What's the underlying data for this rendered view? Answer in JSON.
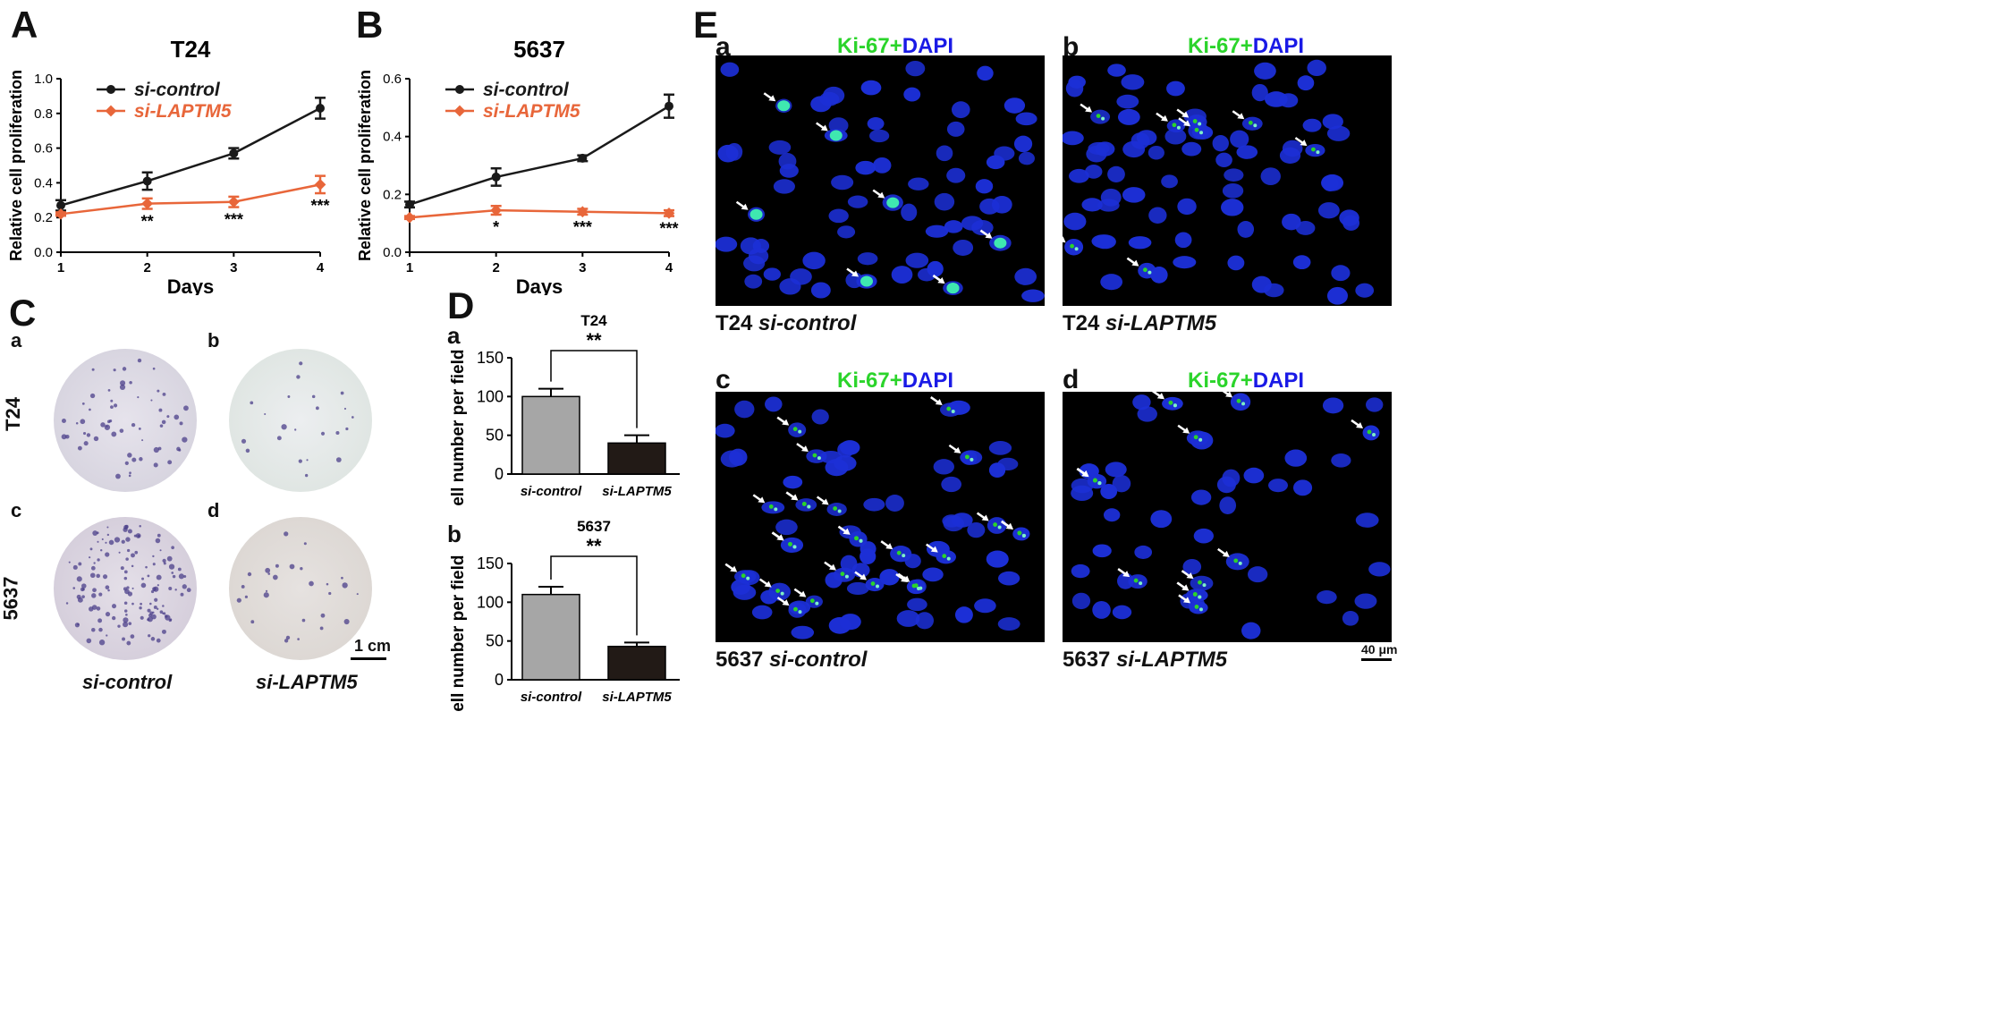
{
  "panels": {
    "A": "A",
    "B": "B",
    "C": "C",
    "D": "D",
    "E": "E"
  },
  "chart_data": [
    {
      "id": "A",
      "type": "line",
      "title": "T24",
      "xlabel": "Days",
      "ylabel": "Relative cell proliferation",
      "x": [
        1,
        2,
        3,
        4
      ],
      "ylim": [
        0.0,
        1.0
      ],
      "yticks": [
        "0.0",
        "0.2",
        "0.4",
        "0.6",
        "0.8",
        "1.0"
      ],
      "xticks": [
        "1",
        "2",
        "3",
        "4"
      ],
      "legend_position": "top-left",
      "series": [
        {
          "name": "si-control",
          "color": "#1a1a1a",
          "values": [
            0.27,
            0.41,
            0.57,
            0.83
          ],
          "errors": [
            0.03,
            0.05,
            0.03,
            0.06
          ]
        },
        {
          "name": "si-LAPTM5",
          "color": "#e8663a",
          "values": [
            0.22,
            0.28,
            0.29,
            0.39
          ],
          "errors": [
            0.01,
            0.03,
            0.03,
            0.05
          ]
        }
      ],
      "annotations": [
        "",
        "**",
        "***",
        "***"
      ]
    },
    {
      "id": "B",
      "type": "line",
      "title": "5637",
      "xlabel": "Days",
      "ylabel": "Relative cell proliferation",
      "x": [
        1,
        2,
        3,
        4
      ],
      "ylim": [
        0.0,
        0.6
      ],
      "yticks": [
        "0.0",
        "0.2",
        "0.4",
        "0.6"
      ],
      "xticks": [
        "1",
        "2",
        "3",
        "4"
      ],
      "legend_position": "top-left",
      "series": [
        {
          "name": "si-control",
          "color": "#1a1a1a",
          "values": [
            0.165,
            0.26,
            0.325,
            0.505
          ],
          "errors": [
            0.01,
            0.03,
            0.01,
            0.04
          ]
        },
        {
          "name": "si-LAPTM5",
          "color": "#e8663a",
          "values": [
            0.12,
            0.145,
            0.14,
            0.135
          ],
          "errors": [
            0.005,
            0.015,
            0.01,
            0.01
          ]
        }
      ],
      "annotations": [
        "",
        "*",
        "***",
        "***"
      ]
    },
    {
      "id": "D-a",
      "type": "bar",
      "title": "T24",
      "significance": "**",
      "ylabel": "Cell number per field",
      "categories": [
        "si-control",
        "si-LAPTM5"
      ],
      "values": [
        100,
        40
      ],
      "errors": [
        10,
        10
      ],
      "colors": [
        "#a6a6a6",
        "#221a16"
      ],
      "ylim": [
        0,
        150
      ],
      "yticks": [
        "0",
        "50",
        "100",
        "150"
      ]
    },
    {
      "id": "D-b",
      "type": "bar",
      "title": "5637",
      "significance": "**",
      "ylabel": "Cell number per field",
      "categories": [
        "si-control",
        "si-LAPTM5"
      ],
      "values": [
        110,
        43
      ],
      "errors": [
        10,
        5
      ],
      "colors": [
        "#a6a6a6",
        "#221a16"
      ],
      "ylim": [
        0,
        150
      ],
      "yticks": [
        "0",
        "50",
        "100",
        "150"
      ]
    }
  ],
  "panelC": {
    "sub": [
      "a",
      "b",
      "c",
      "d"
    ],
    "rows": [
      "T24",
      "5637"
    ],
    "cols": [
      "si-control",
      "si-LAPTM5"
    ],
    "scale_bar": "1 cm"
  },
  "panelD": {
    "sub": [
      "a",
      "b"
    ]
  },
  "panelE": {
    "title_green": "Ki-67+",
    "title_blue": "DAPI",
    "images": [
      {
        "letter": "a",
        "cell": "T24",
        "condition": "si-control"
      },
      {
        "letter": "b",
        "cell": "T24",
        "condition": "si-LAPTM5"
      },
      {
        "letter": "c",
        "cell": "5637",
        "condition": "si-control"
      },
      {
        "letter": "d",
        "cell": "5637",
        "condition": "si-LAPTM5"
      }
    ],
    "scale_bar": "40 μm"
  },
  "colors": {
    "control": "#1a1a1a",
    "laptm5": "#e8663a",
    "ki67_green": "#2bd42b",
    "dapi_blue": "#1a1ae6",
    "nucleus": "#1c2fd6"
  }
}
